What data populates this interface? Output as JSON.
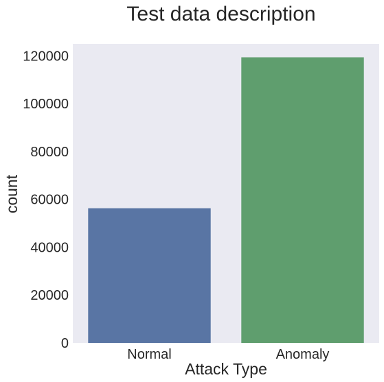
{
  "chart_data": {
    "type": "bar",
    "title": "Test data description",
    "xlabel": "Attack Type",
    "ylabel": "count",
    "categories": [
      "Normal",
      "Anomaly"
    ],
    "values": [
      56300,
      119400
    ],
    "ylim": [
      0,
      125000
    ],
    "yticks": [
      "0",
      "20000",
      "40000",
      "60000",
      "80000",
      "100000",
      "120000"
    ],
    "ytick_values": [
      0,
      20000,
      40000,
      60000,
      80000,
      100000,
      120000
    ],
    "grid": false,
    "colors": [
      "#5975a4",
      "#5f9e6e"
    ],
    "background": "#eaeaf2"
  }
}
